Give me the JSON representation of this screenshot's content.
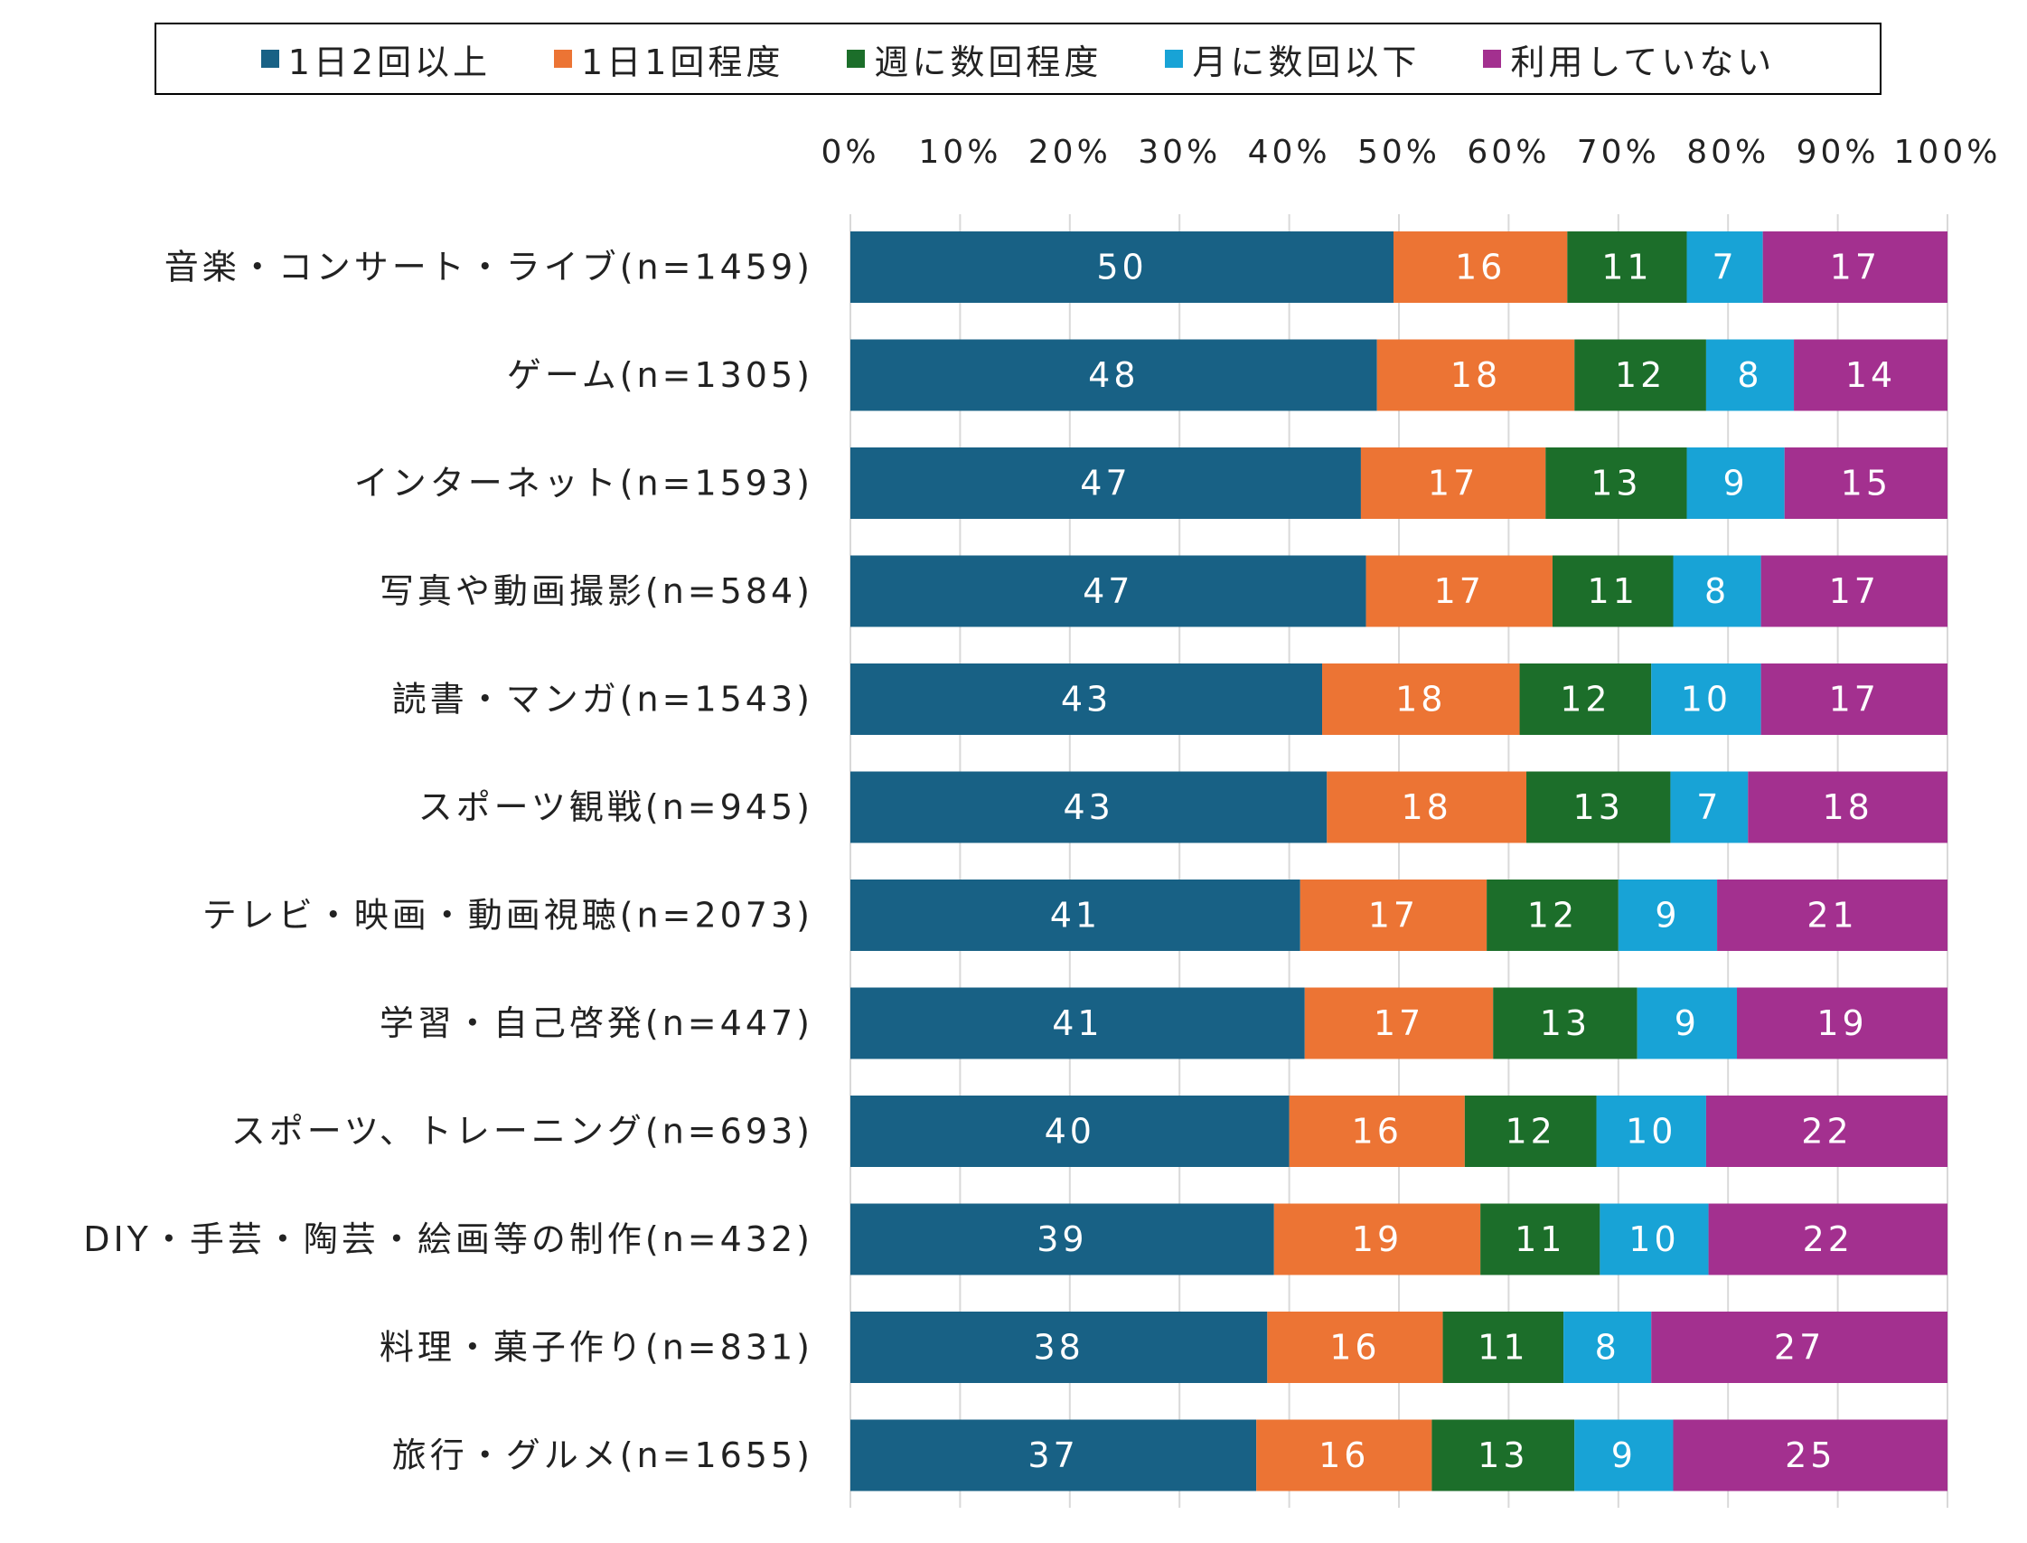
{
  "chart_data": {
    "type": "bar",
    "orientation": "horizontal",
    "stacked": true,
    "percent": true,
    "categories": [
      "音楽・コンサート・ライブ(n=1459)",
      "ゲーム(n=1305)",
      "インターネット(n=1593)",
      "写真や動画撮影(n=584)",
      "読書・マンガ(n=1543)",
      "スポーツ観戦(n=945)",
      "テレビ・映画・動画視聴(n=2073)",
      "学習・自己啓発(n=447)",
      "スポーツ、トレーニング(n=693)",
      "DIY・手芸・陶芸・絵画等の制作(n=432)",
      "料理・菓子作り(n=831)",
      "旅行・グルメ(n=1655)"
    ],
    "series": [
      {
        "name": "1日2回以上",
        "color": "#186185",
        "values": [
          50,
          48,
          47,
          47,
          43,
          43,
          41,
          41,
          40,
          39,
          38,
          37
        ]
      },
      {
        "name": "1日1回程度",
        "color": "#EC7434",
        "values": [
          16,
          18,
          17,
          17,
          18,
          18,
          17,
          17,
          16,
          19,
          16,
          16
        ]
      },
      {
        "name": "週に数回程度",
        "color": "#1C6E2A",
        "values": [
          11,
          12,
          13,
          11,
          12,
          13,
          12,
          13,
          12,
          11,
          11,
          13
        ]
      },
      {
        "name": "月に数回以下",
        "color": "#18A3D6",
        "values": [
          7,
          8,
          9,
          8,
          10,
          7,
          9,
          9,
          10,
          10,
          8,
          9
        ]
      },
      {
        "name": "利用していない",
        "color": "#A3308F",
        "values": [
          17,
          14,
          15,
          17,
          17,
          18,
          21,
          19,
          22,
          22,
          27,
          25
        ]
      }
    ],
    "xlim": [
      0,
      100
    ],
    "xticks": [
      "0%",
      "10%",
      "20%",
      "30%",
      "40%",
      "50%",
      "60%",
      "70%",
      "80%",
      "90%",
      "100%"
    ],
    "grid": true,
    "legend_position": "top"
  }
}
